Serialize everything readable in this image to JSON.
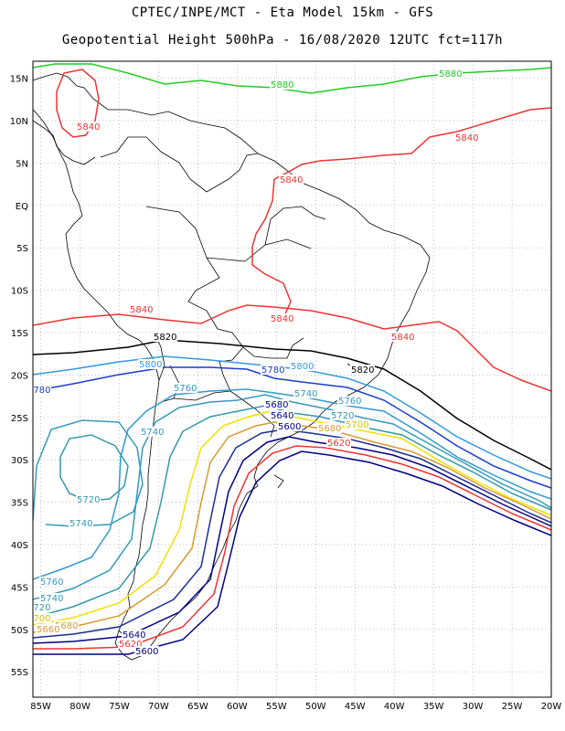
{
  "title": {
    "line1": "CPTEC/INPE/MCT -  Eta Model 15km - GFS",
    "line2": "Geopotential Height 500hPa - 16/08/2020 12UTC fct=117h"
  },
  "map": {
    "lon_range": [
      -86,
      -20
    ],
    "lat_range": [
      17,
      -58
    ],
    "lat_ticks": [
      "15N",
      "10N",
      "5N",
      "EQ",
      "5S",
      "10S",
      "15S",
      "20S",
      "25S",
      "30S",
      "35S",
      "40S",
      "45S",
      "50S",
      "55S"
    ],
    "lon_ticks": [
      "85W",
      "80W",
      "75W",
      "70W",
      "65W",
      "60W",
      "55W",
      "50W",
      "45W",
      "40W",
      "35W",
      "30W",
      "25W",
      "20W"
    ],
    "grid": true
  },
  "contours": [
    {
      "value": 5880,
      "color": "#22cc22"
    },
    {
      "value": 5840,
      "color": "#ee3333"
    },
    {
      "value": 5820,
      "color": "#000000"
    },
    {
      "value": 5800,
      "color": "#3399dd"
    },
    {
      "value": 5780,
      "color": "#1a3ccc"
    },
    {
      "value": 5760,
      "color": "#3399cc"
    },
    {
      "value": 5740,
      "color": "#3399bb"
    },
    {
      "value": 5720,
      "color": "#3399aa"
    },
    {
      "value": 5700,
      "color": "#f0e000"
    },
    {
      "value": 5680,
      "color": "#d79a30"
    },
    {
      "value": 5660,
      "color": "#1a2f8f"
    },
    {
      "value": 5640,
      "color": "#000080"
    },
    {
      "value": 5620,
      "color": "#ee3333"
    },
    {
      "value": 5600,
      "color": "#000080"
    }
  ],
  "contour_labels": [
    {
      "text": "5880",
      "color": "#22cc22"
    },
    {
      "text": "5880",
      "color": "#22cc22"
    },
    {
      "text": "5840",
      "color": "#ee3333"
    },
    {
      "text": "5840",
      "color": "#ee3333"
    },
    {
      "text": "5840",
      "color": "#ee3333"
    },
    {
      "text": "5840",
      "color": "#ee3333"
    },
    {
      "text": "5840",
      "color": "#ee3333"
    },
    {
      "text": "5840",
      "color": "#ee3333"
    },
    {
      "text": "5820",
      "color": "#000000"
    },
    {
      "text": "5820",
      "color": "#000000"
    },
    {
      "text": "5800",
      "color": "#3399dd"
    },
    {
      "text": "5800",
      "color": "#3399dd"
    },
    {
      "text": "5780",
      "color": "#1a3ccc"
    },
    {
      "text": "5780",
      "color": "#1a3ccc"
    },
    {
      "text": "5760",
      "color": "#3399cc"
    },
    {
      "text": "5760",
      "color": "#3399cc"
    },
    {
      "text": "5760",
      "color": "#3399cc"
    },
    {
      "text": "5740",
      "color": "#3399bb"
    },
    {
      "text": "5740",
      "color": "#3399bb"
    },
    {
      "text": "5740",
      "color": "#3399bb"
    },
    {
      "text": "5740",
      "color": "#3399bb"
    },
    {
      "text": "5720",
      "color": "#3399aa"
    },
    {
      "text": "5720",
      "color": "#3399aa"
    },
    {
      "text": "5720",
      "color": "#3399aa"
    },
    {
      "text": "5700",
      "color": "#d7c000"
    },
    {
      "text": "5700",
      "color": "#d7c000"
    },
    {
      "text": "5680",
      "color": "#000080"
    },
    {
      "text": "5680",
      "color": "#d79a30"
    },
    {
      "text": "5680",
      "color": "#d79a30"
    },
    {
      "text": "5660",
      "color": "#d79a30"
    },
    {
      "text": "5640",
      "color": "#000080"
    },
    {
      "text": "5640",
      "color": "#000080"
    },
    {
      "text": "5620",
      "color": "#ee3333"
    },
    {
      "text": "5620",
      "color": "#ee3333"
    },
    {
      "text": "5600",
      "color": "#000080"
    },
    {
      "text": "5600",
      "color": "#000080"
    }
  ]
}
